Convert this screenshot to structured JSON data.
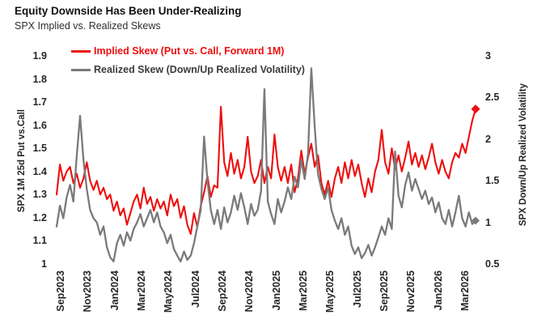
{
  "header": {
    "title": "Equity Downside Has Been Under-Realizing",
    "subtitle": "SPX Implied vs. Realized Skews"
  },
  "colors": {
    "implied_red": "#ee0e0e",
    "realized_gray": "#7a7a7a",
    "text_dark": "#262626"
  },
  "chart_data": {
    "type": "line",
    "title": "Equity Downside Has Been Under-Realizing",
    "subtitle": "SPX Implied vs. Realized Skews",
    "grid": "off",
    "legend_position": "top-left",
    "legend": [
      {
        "label": "Implied Skew (Put vs. Call, Forward 1M)",
        "color": "#ee0e0e"
      },
      {
        "label": "Realized Skew (Down/Up Realized Volatility)",
        "color": "#7a7a7a"
      }
    ],
    "x_tick_labels": [
      "Sep2023",
      "Nov2023",
      "Jan2024",
      "Mar2024",
      "May2024",
      "Jul2024",
      "Sep2024",
      "Nov2024",
      "Jan2025",
      "Mar2025",
      "May2025",
      "Jul2025",
      "Sep2025",
      "Nov2025",
      "Jan2026",
      "Mar2026"
    ],
    "left_axis": {
      "label": "SPX 1M 25d Put vs.Call",
      "min": 1.0,
      "max": 1.9,
      "ticks": [
        "1.9",
        "1.8",
        "1.7",
        "1.6",
        "1.5",
        "1.4",
        "1.3",
        "1.2",
        "1.1",
        "1"
      ]
    },
    "right_axis": {
      "label": "SPX Down/Up Realized Volatility",
      "min": 0.5,
      "max": 3.0,
      "ticks": [
        "3",
        "2.5",
        "2",
        "1.5",
        "1",
        "0.5"
      ]
    },
    "series": [
      {
        "name": "Implied Skew (Put vs. Call, Forward 1M)",
        "axis": "left",
        "color": "#ee0e0e",
        "end_marker": "diamond",
        "end_value": 1.67,
        "values": [
          1.3,
          1.43,
          1.36,
          1.4,
          1.42,
          1.35,
          1.39,
          1.33,
          1.37,
          1.44,
          1.36,
          1.32,
          1.36,
          1.3,
          1.33,
          1.28,
          1.3,
          1.23,
          1.27,
          1.21,
          1.24,
          1.17,
          1.22,
          1.27,
          1.3,
          1.24,
          1.33,
          1.26,
          1.29,
          1.23,
          1.28,
          1.24,
          1.27,
          1.21,
          1.3,
          1.25,
          1.28,
          1.2,
          1.25,
          1.17,
          1.13,
          1.22,
          1.16,
          1.25,
          1.31,
          1.38,
          1.29,
          1.34,
          1.33,
          1.68,
          1.44,
          1.38,
          1.48,
          1.39,
          1.45,
          1.37,
          1.42,
          1.55,
          1.4,
          1.35,
          1.38,
          1.45,
          1.35,
          1.42,
          1.37,
          1.56,
          1.42,
          1.36,
          1.42,
          1.35,
          1.43,
          1.31,
          1.37,
          1.49,
          1.39,
          1.46,
          1.52,
          1.42,
          1.47,
          1.35,
          1.3,
          1.36,
          1.29,
          1.37,
          1.42,
          1.35,
          1.44,
          1.37,
          1.45,
          1.38,
          1.43,
          1.35,
          1.29,
          1.37,
          1.31,
          1.4,
          1.45,
          1.58,
          1.44,
          1.39,
          1.5,
          1.41,
          1.47,
          1.4,
          1.46,
          1.53,
          1.43,
          1.48,
          1.42,
          1.47,
          1.41,
          1.46,
          1.52,
          1.44,
          1.39,
          1.45,
          1.4,
          1.37,
          1.44,
          1.48,
          1.46,
          1.52,
          1.48,
          1.55,
          1.62,
          1.67
        ]
      },
      {
        "name": "Realized Skew (Down/Up Realized Volatility)",
        "axis": "right",
        "color": "#7a7a7a",
        "end_marker": "diamond",
        "end_value": 1.0,
        "values": [
          0.95,
          1.2,
          1.05,
          1.3,
          1.45,
          1.25,
          1.8,
          2.28,
          1.75,
          1.4,
          1.15,
          1.05,
          1.0,
          0.85,
          0.95,
          0.7,
          0.58,
          0.53,
          0.75,
          0.85,
          0.72,
          0.88,
          0.78,
          0.92,
          1.0,
          1.1,
          0.95,
          1.05,
          1.15,
          1.0,
          1.12,
          0.95,
          0.88,
          0.75,
          0.85,
          0.68,
          0.6,
          0.53,
          0.65,
          0.55,
          0.6,
          0.75,
          0.95,
          1.15,
          2.03,
          1.5,
          1.15,
          0.98,
          1.15,
          0.92,
          1.18,
          1.0,
          1.12,
          1.32,
          1.15,
          1.35,
          1.18,
          0.98,
          1.22,
          1.08,
          1.15,
          1.38,
          2.6,
          1.25,
          1.1,
          0.98,
          1.28,
          1.12,
          1.25,
          1.42,
          1.28,
          1.55,
          1.42,
          1.75,
          1.52,
          1.82,
          2.85,
          2.15,
          1.58,
          1.4,
          1.28,
          1.42,
          1.15,
          1.02,
          0.92,
          1.05,
          0.85,
          0.95,
          0.72,
          0.62,
          0.7,
          0.57,
          0.63,
          0.73,
          0.6,
          0.7,
          0.82,
          0.95,
          0.85,
          1.05,
          0.92,
          1.85,
          1.32,
          1.18,
          1.45,
          1.6,
          1.38,
          1.52,
          1.4,
          1.28,
          1.38,
          1.22,
          1.3,
          1.12,
          1.24,
          1.05,
          0.98,
          1.15,
          0.95,
          1.12,
          1.32,
          1.05,
          0.95,
          1.12,
          0.98,
          1.02
        ]
      }
    ]
  }
}
